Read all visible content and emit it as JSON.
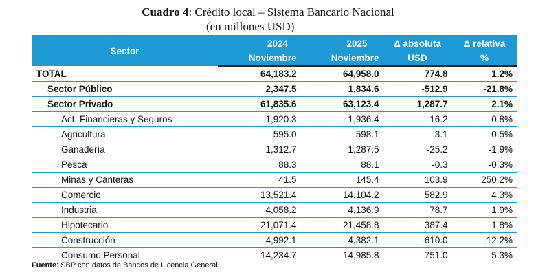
{
  "title": {
    "label": "Cuadro 4",
    "text": ": Crédito local – Sistema Bancario Nacional",
    "subtitle": "(en millones USD)"
  },
  "header": {
    "sector": "Sector",
    "y2024": "2024",
    "y2024_sub": "Noviembre",
    "y2025": "2025",
    "y2025_sub": "Noviembre",
    "abs": "Δ absoluta",
    "abs_sub": "USD",
    "rel": "Δ relativa",
    "rel_sub": "%"
  },
  "rows": [
    {
      "sector": "TOTAL",
      "v2024": "64,183.2",
      "v2025": "64,958.0",
      "abs": "774.8",
      "rel": "1.2%"
    },
    {
      "sector": "Sector Público",
      "v2024": "2,347.5",
      "v2025": "1,834.6",
      "abs": "-512.9",
      "rel": "-21.8%"
    },
    {
      "sector": "Sector Privado",
      "v2024": "61,835.6",
      "v2025": "63,123.4",
      "abs": "1,287.7",
      "rel": "2.1%"
    },
    {
      "sector": "Act. Financieras y Seguros",
      "v2024": "1,920.3",
      "v2025": "1,936.4",
      "abs": "16.2",
      "rel": "0.8%"
    },
    {
      "sector": "Agricultura",
      "v2024": "595.0",
      "v2025": "598.1",
      "abs": "3.1",
      "rel": "0.5%"
    },
    {
      "sector": "Ganadería",
      "v2024": "1,312.7",
      "v2025": "1,287.5",
      "abs": "-25.2",
      "rel": "-1.9%"
    },
    {
      "sector": "Pesca",
      "v2024": "88.3",
      "v2025": "88.1",
      "abs": "-0.3",
      "rel": "-0.3%"
    },
    {
      "sector": "Minas y Canteras",
      "v2024": "41.5",
      "v2025": "145.4",
      "abs": "103.9",
      "rel": "250.2%"
    },
    {
      "sector": "Comercio",
      "v2024": "13,521.4",
      "v2025": "14,104.2",
      "abs": "582.9",
      "rel": "4.3%"
    },
    {
      "sector": "Industria",
      "v2024": "4,058.2",
      "v2025": "4,136.9",
      "abs": "78.7",
      "rel": "1.9%"
    },
    {
      "sector": "Hipotecario",
      "v2024": "21,071.4",
      "v2025": "21,458.8",
      "abs": "387.4",
      "rel": "1.8%"
    },
    {
      "sector": "Construcción",
      "v2024": "4,992.1",
      "v2025": "4,382.1",
      "abs": "-610.0",
      "rel": "-12.2%"
    },
    {
      "sector": "Consumo Personal",
      "v2024": "14,234.7",
      "v2025": "14,985.8",
      "abs": "751.0",
      "rel": "5.3%"
    }
  ],
  "source": {
    "label": "Fuente",
    "text": ": SBP con datos de Bancos de Licencia General"
  },
  "colors": {
    "header_bg": "#1b9ad6",
    "row_border": "#1b9ad6"
  }
}
